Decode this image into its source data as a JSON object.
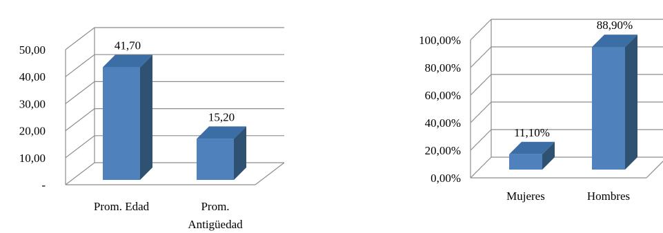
{
  "chart_data": [
    {
      "type": "bar",
      "style": "3d-column",
      "categories": [
        "Prom. Edad",
        "Prom. Antigüedad"
      ],
      "category_lines": [
        [
          "Prom. Edad"
        ],
        [
          "Prom.",
          "Antigüedad"
        ]
      ],
      "values": [
        41.7,
        15.2
      ],
      "data_labels": [
        "41,70",
        "15,20"
      ],
      "yticks": [
        "-",
        "10,00",
        "20,00",
        "30,00",
        "40,00",
        "50,00"
      ],
      "ylim": [
        0,
        50
      ],
      "grid": true,
      "legend": "none",
      "colors": {
        "front": "#4f81bd",
        "side": "#2f5273",
        "top": "#3a6ea5"
      }
    },
    {
      "type": "bar",
      "style": "3d-column",
      "categories": [
        "Mujeres",
        "Hombres"
      ],
      "category_lines": [
        [
          "Mujeres"
        ],
        [
          "Hombres"
        ]
      ],
      "values": [
        11.1,
        88.9
      ],
      "data_labels": [
        "11,10%",
        "88,90%"
      ],
      "yticks": [
        "0,00%",
        "20,00%",
        "40,00%",
        "60,00%",
        "80,00%",
        "100,00%"
      ],
      "ylim": [
        0,
        100
      ],
      "grid": true,
      "legend": "none",
      "colors": {
        "front": "#4f81bd",
        "side": "#2f5273",
        "top": "#3a6ea5"
      }
    }
  ]
}
